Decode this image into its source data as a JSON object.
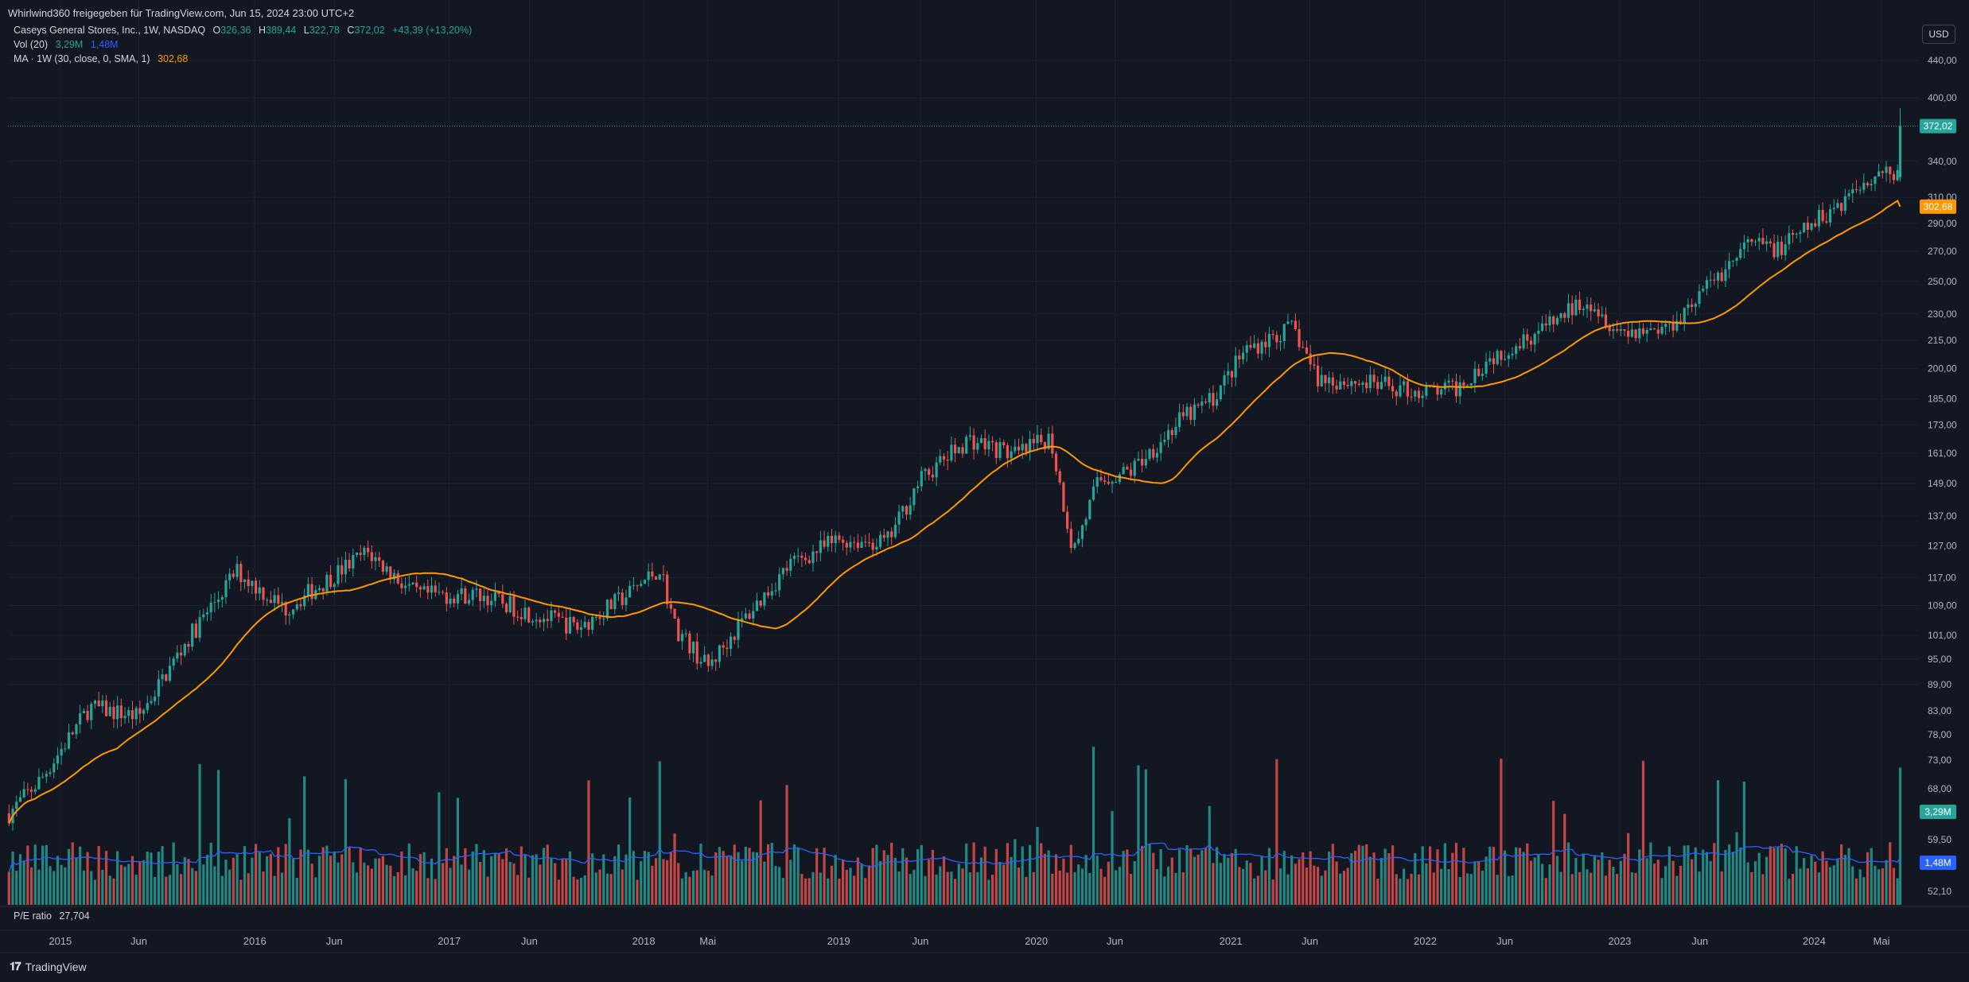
{
  "header": "Whirlwind360 freigegeben für TradingView.com, Jun 15, 2024 23:00 UTC+2",
  "currency": "USD",
  "footer": {
    "brand": "TradingView"
  },
  "legend": {
    "symbol": "Caseys General Stores, Inc., 1W, NASDAQ",
    "o_label": "O",
    "o": "326,36",
    "h_label": "H",
    "h": "389,44",
    "l_label": "L",
    "l": "322,78",
    "c_label": "C",
    "c": "372,02",
    "change": "+43,39 (+13,20%)",
    "vol_label": "Vol (20)",
    "vol_value": "3,29M",
    "vol_ma": "1,48M",
    "ma_label": "MA · 1W (30, close, 0, SMA, 1)",
    "ma_value": "302,68",
    "pe_label": "P/E ratio",
    "pe_value": "27,704"
  },
  "colors": {
    "up": "#26a69a",
    "down": "#ef5350",
    "ma": "#ff9800",
    "vol_ma": "#2962ff",
    "bg": "#131722",
    "grid": "#1f2331"
  },
  "chart_data": {
    "type": "candlestick",
    "interval": "1W",
    "y_scale": "log",
    "y_ticks": [
      "440,00",
      "400,00",
      "340,00",
      "310,00",
      "290,00",
      "270,00",
      "250,00",
      "230,00",
      "215,00",
      "200,00",
      "185,00",
      "173,00",
      "161,00",
      "149,00",
      "137,00",
      "127,00",
      "117,00",
      "109,00",
      "101,00",
      "95,00",
      "89,00",
      "83,00",
      "78,00",
      "73,00",
      "68,00",
      "59,50",
      "52,10"
    ],
    "x_ticks": [
      "2015",
      "Jun",
      "2016",
      "Jun",
      "2017",
      "Jun",
      "2018",
      "Mai",
      "2019",
      "Jun",
      "2020",
      "Jun",
      "2021",
      "Jun",
      "2022",
      "Jun",
      "2023",
      "Jun",
      "2024",
      "Mai"
    ],
    "price_anchors": [
      {
        "t": "2014-10-01",
        "close": 64
      },
      {
        "t": "2014-12-01",
        "close": 70
      },
      {
        "t": "2015-03-01",
        "close": 84
      },
      {
        "t": "2015-06-01",
        "close": 82
      },
      {
        "t": "2015-09-01",
        "close": 100
      },
      {
        "t": "2015-12-01",
        "close": 119
      },
      {
        "t": "2016-03-01",
        "close": 108
      },
      {
        "t": "2016-08-01",
        "close": 125
      },
      {
        "t": "2016-11-01",
        "close": 112
      },
      {
        "t": "2017-03-01",
        "close": 112
      },
      {
        "t": "2017-06-01",
        "close": 107
      },
      {
        "t": "2017-09-01",
        "close": 103
      },
      {
        "t": "2017-12-01",
        "close": 112
      },
      {
        "t": "2018-02-01",
        "close": 120
      },
      {
        "t": "2018-03-01",
        "close": 103
      },
      {
        "t": "2018-05-01",
        "close": 93
      },
      {
        "t": "2018-07-01",
        "close": 104
      },
      {
        "t": "2018-10-01",
        "close": 121
      },
      {
        "t": "2019-01-01",
        "close": 129
      },
      {
        "t": "2019-04-01",
        "close": 128
      },
      {
        "t": "2019-06-01",
        "close": 150
      },
      {
        "t": "2019-09-01",
        "close": 167
      },
      {
        "t": "2019-12-01",
        "close": 160
      },
      {
        "t": "2020-02-01",
        "close": 168
      },
      {
        "t": "2020-03-15",
        "close": 125
      },
      {
        "t": "2020-05-01",
        "close": 150
      },
      {
        "t": "2020-07-01",
        "close": 154
      },
      {
        "t": "2020-10-01",
        "close": 175
      },
      {
        "t": "2020-12-01",
        "close": 185
      },
      {
        "t": "2021-02-01",
        "close": 210
      },
      {
        "t": "2021-05-01",
        "close": 222
      },
      {
        "t": "2021-06-15",
        "close": 195
      },
      {
        "t": "2021-10-01",
        "close": 192
      },
      {
        "t": "2022-01-01",
        "close": 188
      },
      {
        "t": "2022-03-01",
        "close": 190
      },
      {
        "t": "2022-05-01",
        "close": 205
      },
      {
        "t": "2022-09-01",
        "close": 225
      },
      {
        "t": "2022-11-01",
        "close": 240
      },
      {
        "t": "2023-01-01",
        "close": 220
      },
      {
        "t": "2023-04-01",
        "close": 222
      },
      {
        "t": "2023-06-01",
        "close": 242
      },
      {
        "t": "2023-07-01",
        "close": 252
      },
      {
        "t": "2023-09-01",
        "close": 275
      },
      {
        "t": "2023-11-01",
        "close": 272
      },
      {
        "t": "2024-02-01",
        "close": 300
      },
      {
        "t": "2024-05-01",
        "close": 333
      },
      {
        "t": "2024-06-08",
        "close": 328
      },
      {
        "t": "2024-06-15",
        "close": 372.02
      }
    ],
    "last_bar": {
      "open": 326.36,
      "high": 389.44,
      "low": 322.78,
      "close": 372.02
    },
    "ma": {
      "period": 30,
      "last": 302.68
    },
    "volume": {
      "last": "3,29M",
      "ma_last": "1,48M"
    },
    "price_labels": {
      "last": "372,02",
      "ma": "302,68",
      "vol": "3,29M",
      "vol_ma": "1,48M"
    }
  }
}
